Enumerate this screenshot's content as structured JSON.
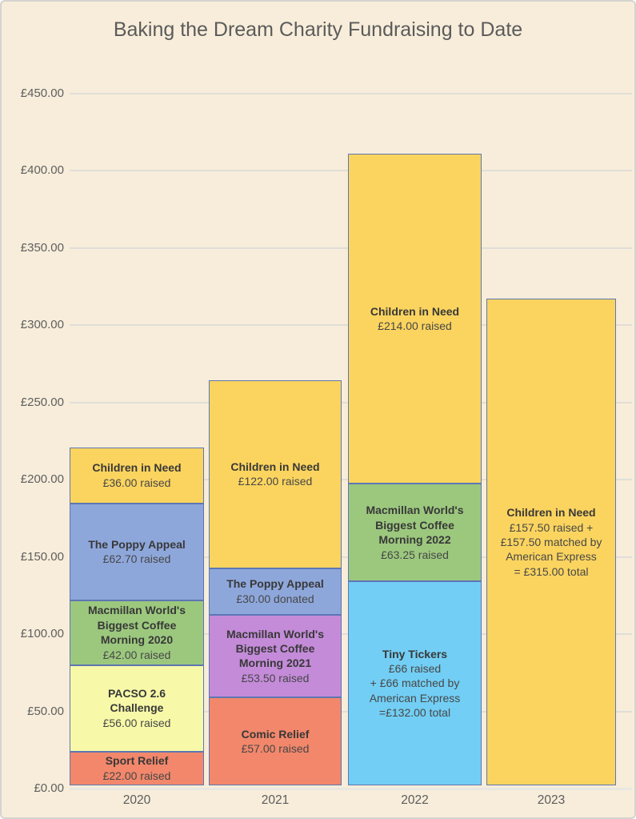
{
  "page": {
    "background_color": "#F7EDDA",
    "outer_border_color": "#D4D3D0"
  },
  "chart_data": {
    "type": "bar",
    "stacked": true,
    "title": "Baking the Dream Charity Fundraising to Date",
    "xlabel": "",
    "ylabel": "",
    "categories": [
      "2020",
      "2021",
      "2022",
      "2023"
    ],
    "ylim": [
      0,
      450
    ],
    "ytick_step": 50,
    "ytick_labels": [
      "£0.00",
      "£50.00",
      "£100.00",
      "£150.00",
      "£200.00",
      "£250.00",
      "£300.00",
      "£350.00",
      "£400.00",
      "£450.00"
    ],
    "grid": "horizontal gridlines on, no vertical gridlines",
    "legend_position": "none (labels drawn inside segments)",
    "bar_totals": [
      218.7,
      262.5,
      409.25,
      315.0
    ],
    "bars": [
      {
        "category": "2020",
        "segments": [
          {
            "name": "Sport Relief",
            "value": 22.0,
            "color": "#F2876B",
            "title_lines": [
              "Sport Relief"
            ],
            "detail_lines": [
              "£22.00 raised"
            ]
          },
          {
            "name": "PACSO 2.6 Challenge",
            "value": 56.0,
            "color": "#F7F9A8",
            "title_lines": [
              "PACSO 2.6",
              "Challenge"
            ],
            "detail_lines": [
              "£56.00 raised"
            ]
          },
          {
            "name": "Macmillan World's Biggest Coffee Morning 2020",
            "value": 42.0,
            "color": "#9CC87E",
            "title_lines": [
              "Macmillan World's",
              "Biggest Coffee",
              "Morning 2020"
            ],
            "detail_lines": [
              "£42.00 raised"
            ]
          },
          {
            "name": "The Poppy Appeal",
            "value": 62.7,
            "color": "#8EA7DB",
            "title_lines": [
              "The Poppy Appeal"
            ],
            "detail_lines": [
              "£62.70 raised"
            ]
          },
          {
            "name": "Children in Need",
            "value": 36.0,
            "color": "#FBD45F",
            "title_lines": [
              "Children in Need"
            ],
            "detail_lines": [
              "£36.00 raised"
            ]
          }
        ]
      },
      {
        "category": "2021",
        "segments": [
          {
            "name": "Comic Relief",
            "value": 57.0,
            "color": "#F2876B",
            "title_lines": [
              "Comic Relief"
            ],
            "detail_lines": [
              "£57.00 raised"
            ]
          },
          {
            "name": "Macmillan World's Biggest Coffee Morning 2021",
            "value": 53.5,
            "color": "#C48BD9",
            "title_lines": [
              "Macmillan World's",
              "Biggest Coffee",
              "Morning 2021"
            ],
            "detail_lines": [
              "£53.50 raised"
            ]
          },
          {
            "name": "The Poppy Appeal",
            "value": 30.0,
            "color": "#8EA7DB",
            "title_lines": [
              "The Poppy Appeal"
            ],
            "detail_lines": [
              "£30.00 donated"
            ]
          },
          {
            "name": "Children in Need",
            "value": 122.0,
            "color": "#FBD45F",
            "title_lines": [
              "Children in Need"
            ],
            "detail_lines": [
              "£122.00 raised"
            ]
          }
        ]
      },
      {
        "category": "2022",
        "segments": [
          {
            "name": "Tiny Tickers",
            "value": 132.0,
            "color": "#72CEF4",
            "title_lines": [
              "Tiny Tickers"
            ],
            "detail_lines": [
              "£66 raised",
              "+ £66 matched by",
              "American Express",
              "=£132.00 total"
            ]
          },
          {
            "name": "Macmillan World's Biggest Coffee Morning 2022",
            "value": 63.25,
            "color": "#9CC87E",
            "title_lines": [
              "Macmillan World's",
              "Biggest Coffee",
              "Morning 2022"
            ],
            "detail_lines": [
              "£63.25 raised"
            ]
          },
          {
            "name": "Children in Need",
            "value": 214.0,
            "color": "#FBD45F",
            "title_lines": [
              "Children in Need"
            ],
            "detail_lines": [
              "£214.00 raised"
            ]
          }
        ]
      },
      {
        "category": "2023",
        "segments": [
          {
            "name": "Children in Need",
            "value": 315.0,
            "color": "#FBD45F",
            "title_lines": [
              "Children in Need"
            ],
            "detail_lines": [
              "£157.50 raised +",
              "£157.50 matched by",
              "American Express",
              "= £315.00 total"
            ]
          }
        ]
      }
    ],
    "colors": {
      "segment_border": "#5D77B3",
      "gridline": "#E0DED8",
      "title_text": "#5B5B5B",
      "axis_text": "#5F5F5F",
      "segment_title_text": "#383838",
      "segment_detail_text": "#474747"
    }
  }
}
